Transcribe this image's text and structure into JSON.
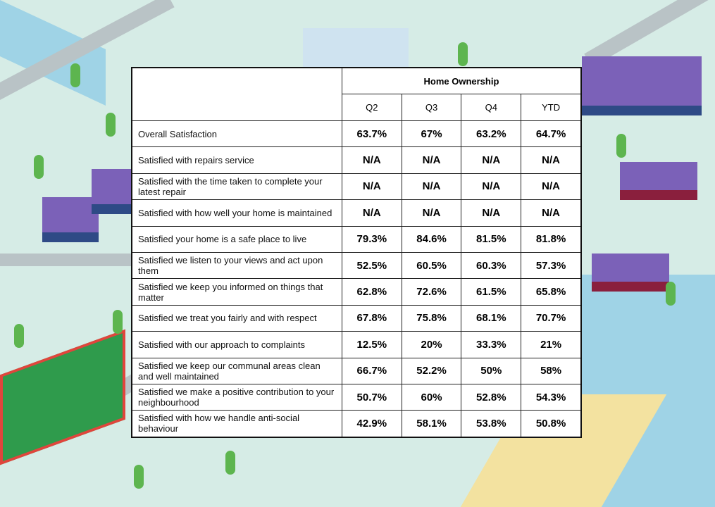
{
  "table": {
    "group_header": "Home Ownership",
    "columns": [
      "Q2",
      "Q3",
      "Q4",
      "YTD"
    ],
    "rows": [
      {
        "label": "Overall Satisfaction",
        "values": [
          "63.7%",
          "67%",
          "63.2%",
          "64.7%"
        ]
      },
      {
        "label": "Satisfied with repairs service",
        "values": [
          "N/A",
          "N/A",
          "N/A",
          "N/A"
        ]
      },
      {
        "label": "Satisfied with the time taken to complete your latest repair",
        "values": [
          "N/A",
          "N/A",
          "N/A",
          "N/A"
        ]
      },
      {
        "label": "Satisfied with how well your home is maintained",
        "values": [
          "N/A",
          "N/A",
          "N/A",
          "N/A"
        ]
      },
      {
        "label": "Satisfied your home is a safe place to live",
        "values": [
          "79.3%",
          "84.6%",
          "81.5%",
          "81.8%"
        ]
      },
      {
        "label": "Satisfied we listen to your views and act upon them",
        "values": [
          "52.5%",
          "60.5%",
          "60.3%",
          "57.3%"
        ]
      },
      {
        "label": "Satisfied we keep you informed on things that matter",
        "values": [
          "62.8%",
          "72.6%",
          "61.5%",
          "65.8%"
        ]
      },
      {
        "label": "Satisfied we treat you fairly and with respect",
        "values": [
          "67.8%",
          "75.8%",
          "68.1%",
          "70.7%"
        ]
      },
      {
        "label": "Satisfied with our approach to complaints",
        "values": [
          "12.5%",
          "20%",
          "33.3%",
          "21%"
        ]
      },
      {
        "label": "Satisfied we keep our communal areas clean and well maintained",
        "values": [
          "66.7%",
          "52.2%",
          "50%",
          "58%"
        ]
      },
      {
        "label": "Satisfied we make a positive contribution to your neighbourhood",
        "values": [
          "50.7%",
          "60%",
          "52.8%",
          "54.3%"
        ]
      },
      {
        "label": "Satisfied with how we handle anti-social behaviour",
        "values": [
          "42.9%",
          "58.1%",
          "53.8%",
          "50.8%"
        ]
      }
    ]
  }
}
